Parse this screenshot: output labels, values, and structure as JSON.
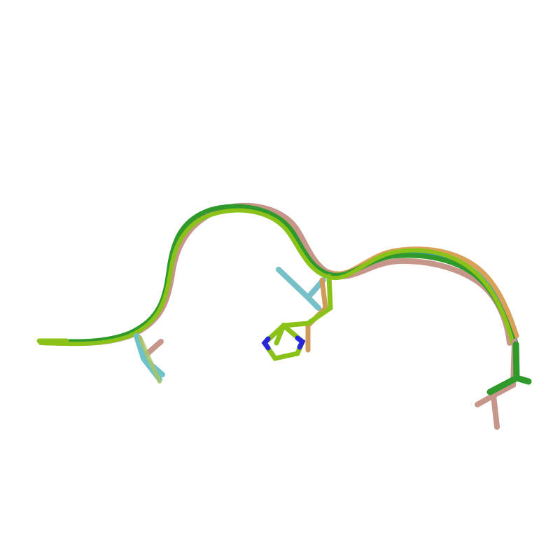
{
  "scene": {
    "kind": "protein-loop-superposition",
    "background_color": "#ffffff",
    "representation": "cartoon-tube-with-sticks",
    "chains": [
      {
        "id": "chain-salmon",
        "color": "#c7968a"
      },
      {
        "id": "chain-cyan",
        "color": "#6fc3c8"
      },
      {
        "id": "chain-teal",
        "color": "#3f9aa3"
      },
      {
        "id": "chain-orange",
        "color": "#d9a05a"
      },
      {
        "id": "chain-lime",
        "color": "#8bc21a"
      },
      {
        "id": "chain-green",
        "color": "#2f9a2b"
      }
    ],
    "atom_colors": {
      "nitrogen": "#2828d8"
    }
  }
}
